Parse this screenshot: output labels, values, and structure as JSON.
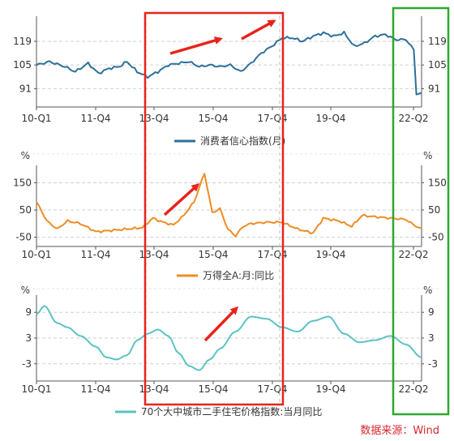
{
  "source_label": "数据来源：Wind",
  "chart_data": [
    {
      "type": "line",
      "title": "",
      "unit_left": "",
      "unit_right": "",
      "x_ticks": [
        "10-Q1",
        "11-Q4",
        "13-Q4",
        "15-Q4",
        "17-Q4",
        "19-Q4",
        "22-Q2"
      ],
      "y_ticks": [
        91,
        105,
        119
      ],
      "ylim": [
        84,
        130
      ],
      "grid": "horizontal-dashed",
      "legend_position": "bottom",
      "color": "#2e7099",
      "series": [
        {
          "name": "消费者信心指数(月)",
          "x_start": "2010-01",
          "x_end": "2022-06",
          "anchors": [
            [
              "2010-01",
              105
            ],
            [
              "2010-06",
              107
            ],
            [
              "2010-12",
              104
            ],
            [
              "2011-04",
              101
            ],
            [
              "2011-09",
              106
            ],
            [
              "2012-01",
              100
            ],
            [
              "2012-05",
              103
            ],
            [
              "2012-09",
              104
            ],
            [
              "2012-12",
              107
            ],
            [
              "2013-04",
              101
            ],
            [
              "2013-08",
              98
            ],
            [
              "2013-12",
              101
            ],
            [
              "2014-04",
              105
            ],
            [
              "2014-08",
              106
            ],
            [
              "2014-12",
              107
            ],
            [
              "2015-04",
              104
            ],
            [
              "2015-08",
              105
            ],
            [
              "2015-12",
              104
            ],
            [
              "2016-04",
              105
            ],
            [
              "2016-08",
              101
            ],
            [
              "2016-12",
              106
            ],
            [
              "2017-04",
              112
            ],
            [
              "2017-08",
              116
            ],
            [
              "2017-12",
              121
            ],
            [
              "2018-04",
              121
            ],
            [
              "2018-08",
              119
            ],
            [
              "2018-12",
              122
            ],
            [
              "2019-04",
              124
            ],
            [
              "2019-08",
              122
            ],
            [
              "2019-12",
              124
            ],
            [
              "2020-04",
              116
            ],
            [
              "2020-08",
              118
            ],
            [
              "2020-12",
              122
            ],
            [
              "2021-04",
              123
            ],
            [
              "2021-08",
              120
            ],
            [
              "2021-12",
              120
            ],
            [
              "2022-03",
              114
            ],
            [
              "2022-04",
              88
            ],
            [
              "2022-06",
              88
            ]
          ]
        }
      ]
    },
    {
      "type": "line",
      "title": "",
      "unit_left": "%",
      "unit_right": "%",
      "x_ticks": [
        "10-Q1",
        "11-Q4",
        "13-Q4",
        "15-Q4",
        "17-Q4",
        "19-Q4",
        "22-Q2"
      ],
      "y_ticks": [
        -50,
        50,
        150
      ],
      "ylim": [
        -60,
        190
      ],
      "grid": "horizontal-dashed",
      "legend_position": "bottom",
      "color": "#ef8c24",
      "series": [
        {
          "name": "万得全A:月:同比",
          "x_start": "2010-01",
          "x_end": "2022-06",
          "anchors": [
            [
              "2010-01",
              80
            ],
            [
              "2010-05",
              10
            ],
            [
              "2010-09",
              -20
            ],
            [
              "2011-01",
              10
            ],
            [
              "2011-06",
              0
            ],
            [
              "2011-12",
              -30
            ],
            [
              "2012-06",
              -25
            ],
            [
              "2012-12",
              -20
            ],
            [
              "2013-06",
              -15
            ],
            [
              "2013-10",
              20
            ],
            [
              "2014-02",
              5
            ],
            [
              "2014-06",
              -5
            ],
            [
              "2014-10",
              30
            ],
            [
              "2015-02",
              80
            ],
            [
              "2015-06",
              185
            ],
            [
              "2015-09",
              40
            ],
            [
              "2015-12",
              55
            ],
            [
              "2016-03",
              -20
            ],
            [
              "2016-06",
              -45
            ],
            [
              "2016-09",
              -10
            ],
            [
              "2016-12",
              0
            ],
            [
              "2017-06",
              5
            ],
            [
              "2017-12",
              5
            ],
            [
              "2018-06",
              -20
            ],
            [
              "2018-12",
              -35
            ],
            [
              "2019-04",
              20
            ],
            [
              "2019-10",
              10
            ],
            [
              "2020-03",
              -10
            ],
            [
              "2020-07",
              30
            ],
            [
              "2020-12",
              25
            ],
            [
              "2021-06",
              20
            ],
            [
              "2021-12",
              15
            ],
            [
              "2022-03",
              -5
            ],
            [
              "2022-06",
              -20
            ]
          ]
        }
      ]
    },
    {
      "type": "line",
      "title": "",
      "unit_left": "%",
      "unit_right": "%",
      "x_ticks": [
        "10-Q1",
        "11-Q4",
        "13-Q4",
        "15-Q4",
        "17-Q4",
        "19-Q4",
        "22-Q2"
      ],
      "y_ticks": [
        -3,
        3,
        9
      ],
      "ylim": [
        -5.5,
        11.5
      ],
      "grid": "horizontal-dashed",
      "legend_position": "bottom",
      "color": "#5bc3c3",
      "series": [
        {
          "name": "70个大中城市二手住宅价格指数:当月同比",
          "x_start": "2010-01",
          "x_end": "2022-06",
          "anchors": [
            [
              "2010-01",
              8.5
            ],
            [
              "2010-04",
              10.5
            ],
            [
              "2010-09",
              6.5
            ],
            [
              "2011-01",
              5.5
            ],
            [
              "2011-06",
              3.5
            ],
            [
              "2011-12",
              1.0
            ],
            [
              "2012-04",
              -1.5
            ],
            [
              "2012-08",
              -2.0
            ],
            [
              "2012-12",
              -1.0
            ],
            [
              "2013-04",
              2.5
            ],
            [
              "2013-08",
              4.0
            ],
            [
              "2013-12",
              5.0
            ],
            [
              "2014-04",
              3.5
            ],
            [
              "2014-08",
              -0.5
            ],
            [
              "2014-12",
              -3.5
            ],
            [
              "2015-04",
              -4.5
            ],
            [
              "2015-08",
              -2.0
            ],
            [
              "2015-12",
              0.5
            ],
            [
              "2016-06",
              4.5
            ],
            [
              "2016-12",
              8.0
            ],
            [
              "2017-06",
              7.5
            ],
            [
              "2017-12",
              5.5
            ],
            [
              "2018-06",
              4.5
            ],
            [
              "2018-12",
              7.0
            ],
            [
              "2019-06",
              8.0
            ],
            [
              "2019-12",
              4.0
            ],
            [
              "2020-06",
              2.0
            ],
            [
              "2020-12",
              2.5
            ],
            [
              "2021-06",
              3.5
            ],
            [
              "2021-12",
              1.5
            ],
            [
              "2022-06",
              -1.5
            ]
          ]
        }
      ]
    }
  ]
}
